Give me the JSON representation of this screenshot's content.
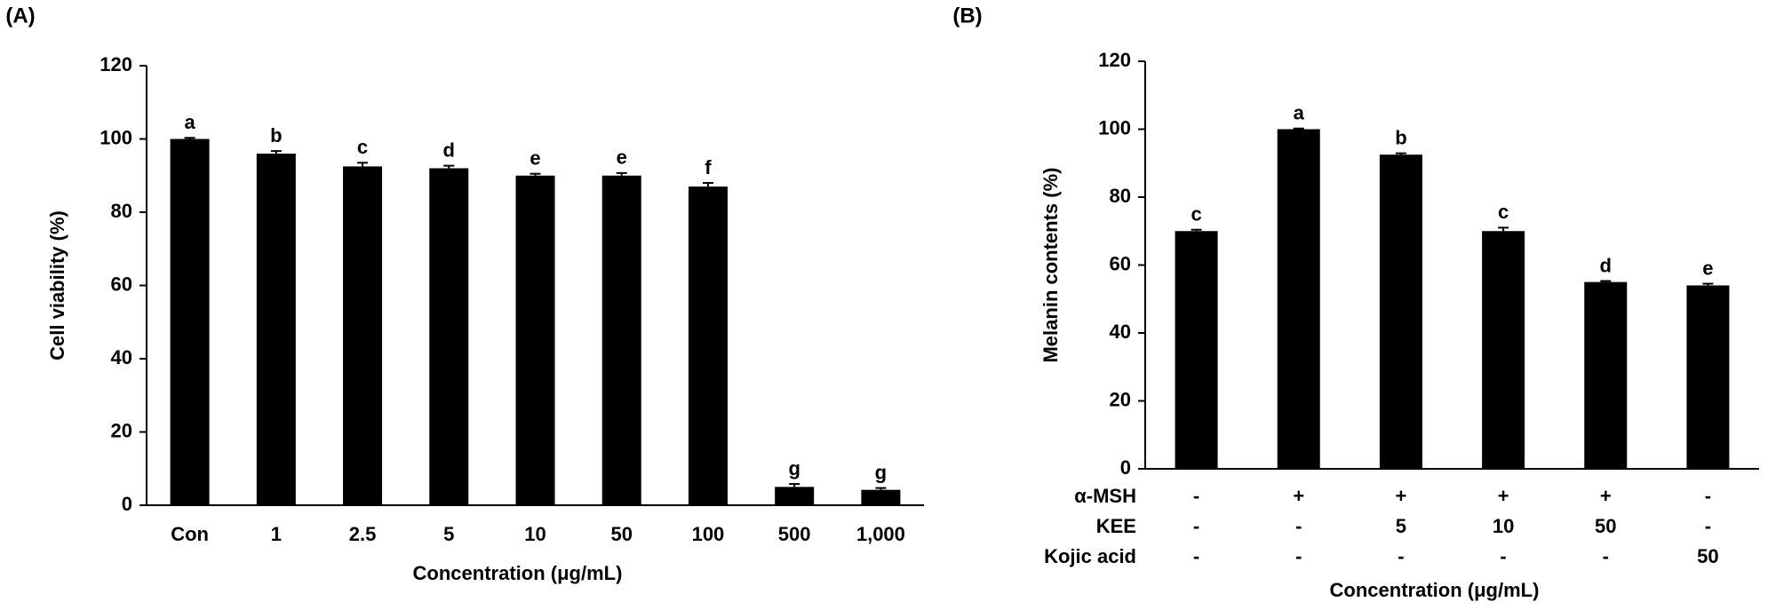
{
  "chart_data": [
    {
      "type": "bar",
      "panel": "(A)",
      "y_label": "Cell viability (%)",
      "x_label": "Concentration (μg/mL)",
      "categories": [
        "Con",
        "1",
        "2.5",
        "5",
        "10",
        "50",
        "100",
        "500",
        "1,000"
      ],
      "values": [
        100,
        96,
        92.5,
        92,
        90,
        90,
        87,
        5,
        4.2
      ],
      "errors": [
        0.3,
        0.7,
        1,
        0.7,
        0.5,
        0.7,
        1,
        0.8,
        0.5
      ],
      "annotations": [
        "a",
        "b",
        "c",
        "d",
        "e",
        "e",
        "f",
        "g",
        "g"
      ],
      "color": "#000000",
      "ylim": [
        0,
        120
      ],
      "yticks": [
        0,
        20,
        40,
        60,
        80,
        100,
        120
      ],
      "grid": false
    },
    {
      "type": "bar",
      "panel": "(B)",
      "y_label": "Melanin contents (%)",
      "x_label": "Concentration (μg/mL)",
      "treatment_rows": [
        {
          "name": "α-MSH",
          "values": [
            "-",
            "+",
            "+",
            "+",
            "+",
            "-"
          ]
        },
        {
          "name": "KEE",
          "values": [
            "-",
            "-",
            "5",
            "10",
            "50",
            "-"
          ]
        },
        {
          "name": "Kojic acid",
          "values": [
            "-",
            "-",
            "-",
            "-",
            "-",
            "50"
          ]
        }
      ],
      "values": [
        70,
        100,
        92.5,
        70,
        55,
        54
      ],
      "errors": [
        0.4,
        0.2,
        0.4,
        1,
        0.3,
        0.5
      ],
      "annotations": [
        "c",
        "a",
        "b",
        "c",
        "d",
        "e"
      ],
      "color": "#000000",
      "ylim": [
        0,
        120
      ],
      "yticks": [
        0,
        20,
        40,
        60,
        80,
        100,
        120
      ],
      "grid": false
    }
  ]
}
